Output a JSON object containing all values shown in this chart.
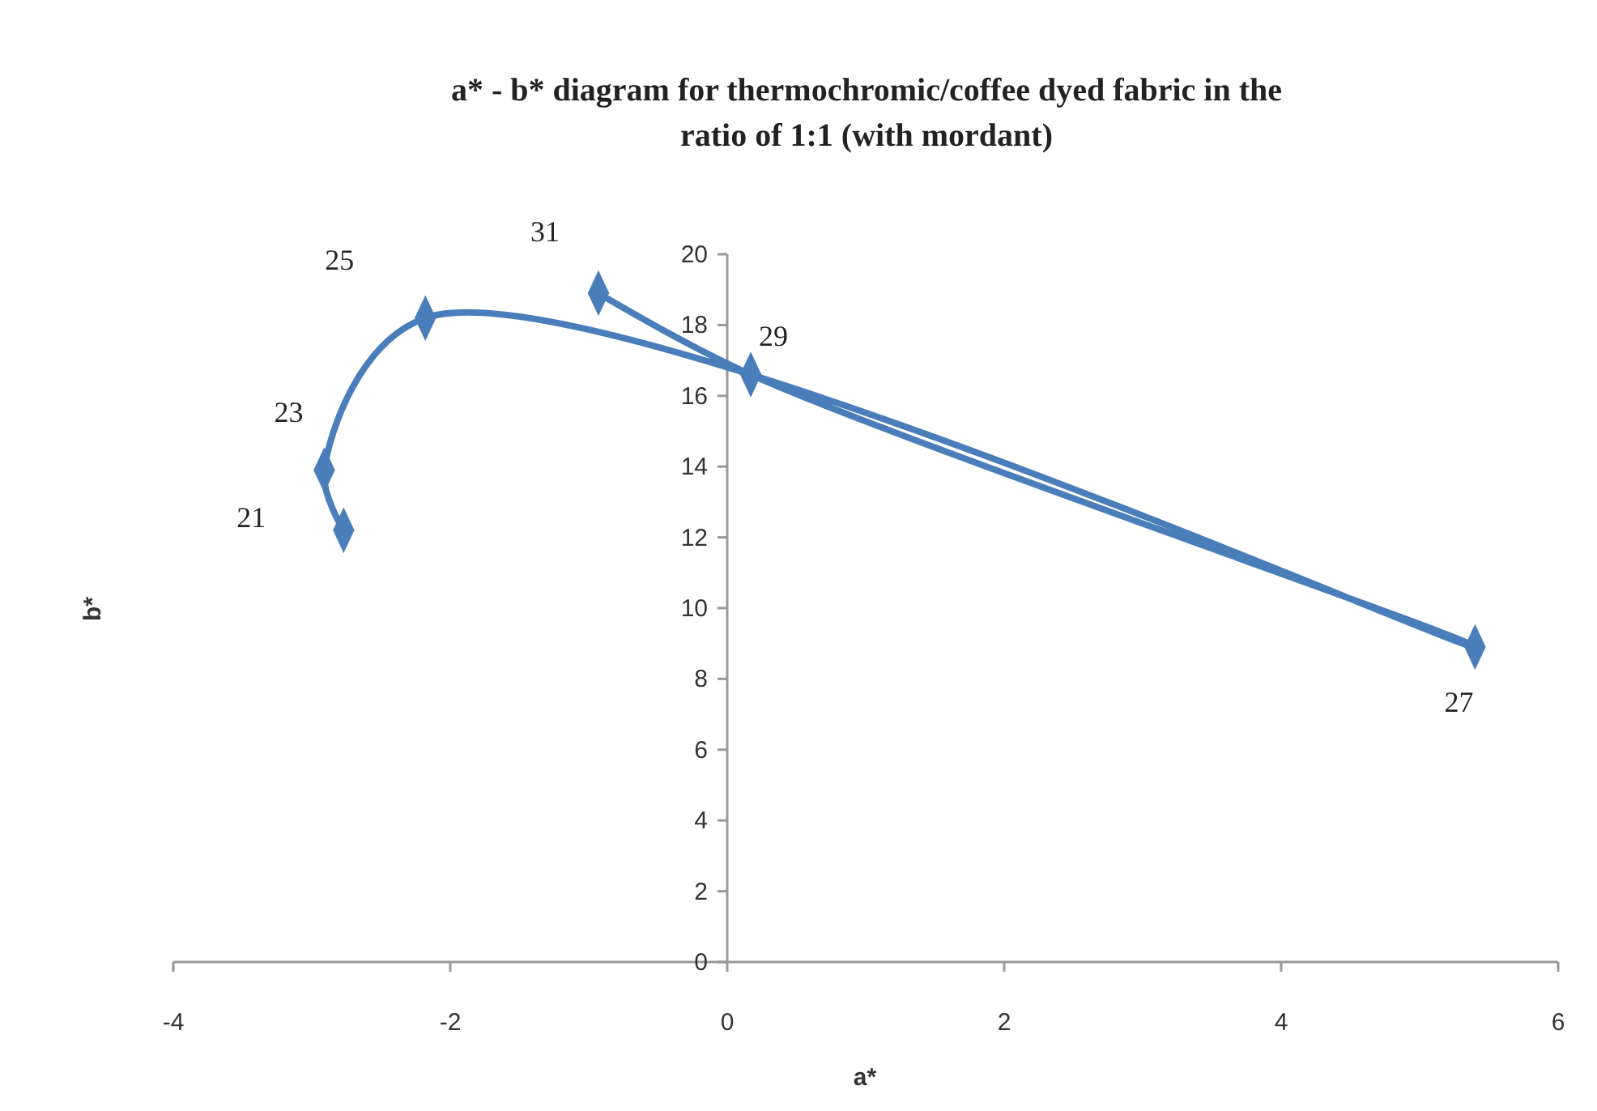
{
  "chart_data": {
    "type": "line",
    "title": "a* - b* diagram for thermochromic/coffee dyed fabric in the ratio of 1:1 (with mordant)",
    "xlabel": "a*",
    "ylabel": "b*",
    "series": [
      {
        "color": "#4a7ebb",
        "x": [
          -2.77,
          -2.91,
          -2.18,
          5.4,
          0.17,
          -0.93
        ],
        "values": [
          12.2,
          13.9,
          18.2,
          8.9,
          16.6,
          18.9
        ]
      }
    ],
    "xlim": [
      -4,
      6
    ],
    "xticks": [
      -4,
      -2,
      0,
      2,
      4,
      6
    ],
    "ylim": [
      0,
      20
    ],
    "yticks": [
      0,
      2,
      4,
      6,
      8,
      10,
      12,
      14,
      16,
      18,
      20
    ],
    "grid": false,
    "marker": "diamond",
    "line_style": "solid",
    "annotations": [
      {
        "text": "21",
        "x": -2.77,
        "y": 12.2
      },
      {
        "text": "23",
        "x": -2.91,
        "y": 13.9
      },
      {
        "text": "25",
        "x": -2.18,
        "y": 18.2
      },
      {
        "text": "27",
        "x": 5.4,
        "y": 8.9
      },
      {
        "text": "29",
        "x": 0.17,
        "y": 16.6
      },
      {
        "text": "31",
        "x": -0.93,
        "y": 18.9
      }
    ]
  }
}
